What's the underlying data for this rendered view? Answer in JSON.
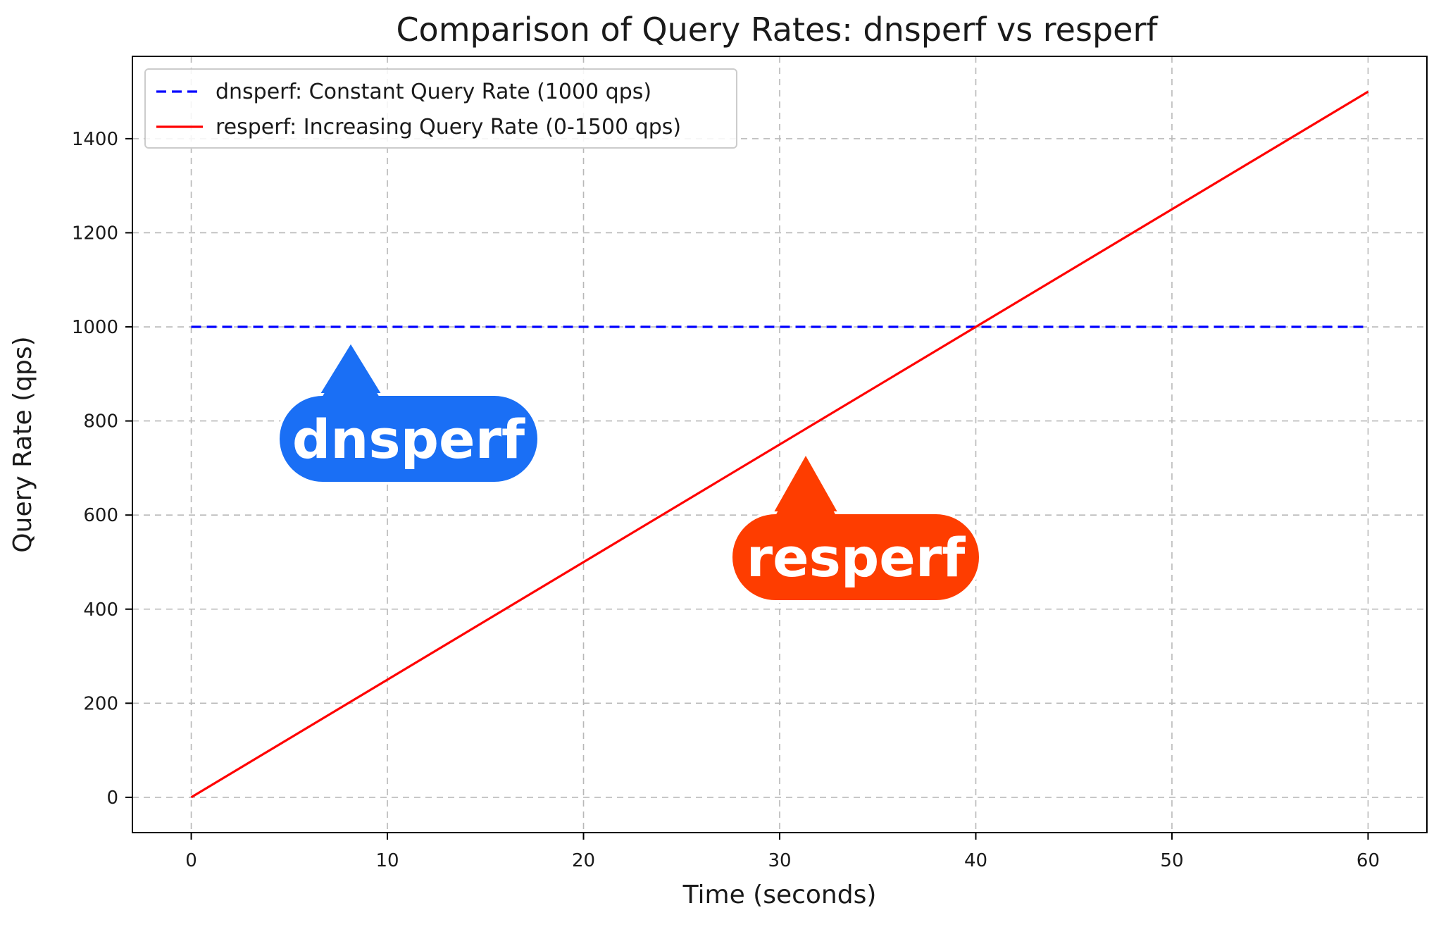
{
  "chart_data": {
    "type": "line",
    "title": "Comparison of Query Rates: dnsperf vs resperf",
    "xlabel": "Time (seconds)",
    "ylabel": "Query Rate (qps)",
    "xlim": [
      -3,
      63
    ],
    "ylim": [
      -75,
      1575
    ],
    "xticks": [
      0,
      10,
      20,
      30,
      40,
      50,
      60
    ],
    "yticks": [
      0,
      200,
      400,
      600,
      800,
      1000,
      1200,
      1400
    ],
    "grid": true,
    "legend_position": "top-left",
    "series": [
      {
        "name": "dnsperf: Constant Query Rate (1000 qps)",
        "color": "#0000ff",
        "style": "dashed",
        "x": [
          0,
          60
        ],
        "y": [
          1000,
          1000
        ]
      },
      {
        "name": "resperf: Increasing Query Rate (0-1500 qps)",
        "color": "#ff0000",
        "style": "solid",
        "x": [
          0,
          60
        ],
        "y": [
          0,
          1500
        ]
      }
    ],
    "annotations": [
      {
        "text": "dnsperf",
        "color": "#1a6ff5",
        "pointer": [
          8.2,
          975
        ]
      },
      {
        "text": "resperf",
        "color": "#fe3d00",
        "pointer": [
          31.4,
          740
        ]
      }
    ]
  }
}
